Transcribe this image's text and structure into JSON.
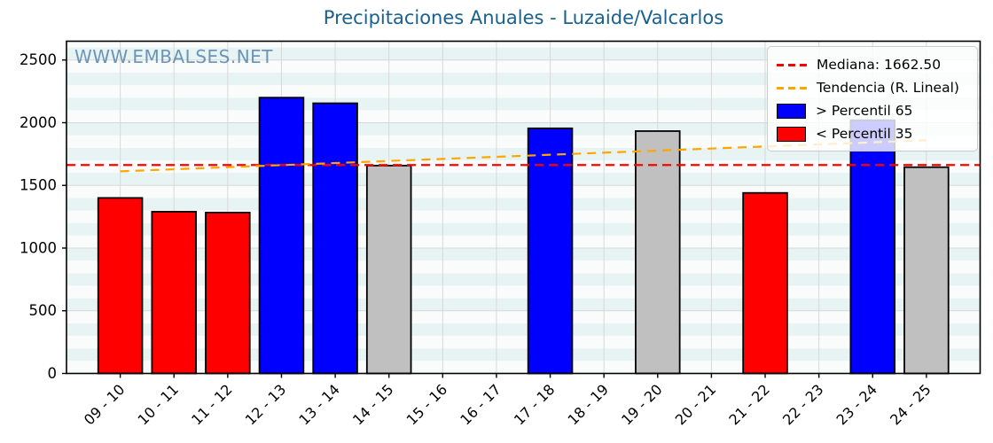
{
  "title": "Precipitaciones Anuales - Luzaide/Valcarlos",
  "watermark": "WWW.EMBALSES.NET",
  "legend": {
    "median_label": "Mediana: 1662.50",
    "trend_label": "Tendencia (R. Lineal)",
    "p65_label": "> Percentil 65",
    "p35_label": "< Percentil 35"
  },
  "colors": {
    "title": "#1a618f",
    "watermark": "#4d7ea7",
    "median_line": "#ff0000",
    "trend_line": "#ffa500",
    "bar_above_p65": "#0000ff",
    "bar_below_p35": "#ff0000",
    "bar_mid": "#c0c0c0",
    "bar_edge": "#000000",
    "stripe_light": "#e8f3f3",
    "stripe_white": "#fafcfc",
    "grid": "#d8d8d8",
    "axis": "#000000",
    "tick_text": "#000000"
  },
  "chart_data": {
    "type": "bar",
    "title": "Precipitaciones Anuales - Luzaide/Valcarlos",
    "xlabel": "",
    "ylabel": "",
    "categories": [
      "09 - 10",
      "10 - 11",
      "11 - 12",
      "12 - 13",
      "13 - 14",
      "14 - 15",
      "15 - 16",
      "16 - 17",
      "17 - 18",
      "18 - 19",
      "19 - 20",
      "20 - 21",
      "21 - 22",
      "22 - 23",
      "23 - 24",
      "24 - 25"
    ],
    "values": [
      1400,
      1290,
      1283,
      2200,
      2155,
      1658,
      null,
      null,
      1955,
      null,
      1933,
      null,
      1440,
      null,
      2020,
      1645
    ],
    "bar_classes": [
      "below_p35",
      "below_p35",
      "below_p35",
      "above_p65",
      "above_p65",
      "mid",
      null,
      null,
      "above_p65",
      null,
      "mid",
      null,
      "below_p35",
      null,
      "above_p65",
      "mid"
    ],
    "median": 1662.5,
    "trend": {
      "start": 1612,
      "end": 1860
    },
    "ylim": [
      0,
      2650
    ],
    "yticks": [
      0,
      500,
      1000,
      1500,
      2000,
      2500
    ],
    "grid": true,
    "stripe_band": 100,
    "legend_position": "upper right",
    "legend_entries": [
      "Mediana: 1662.50",
      "Tendencia (R. Lineal)",
      "> Percentil 65",
      "< Percentil 35"
    ]
  }
}
